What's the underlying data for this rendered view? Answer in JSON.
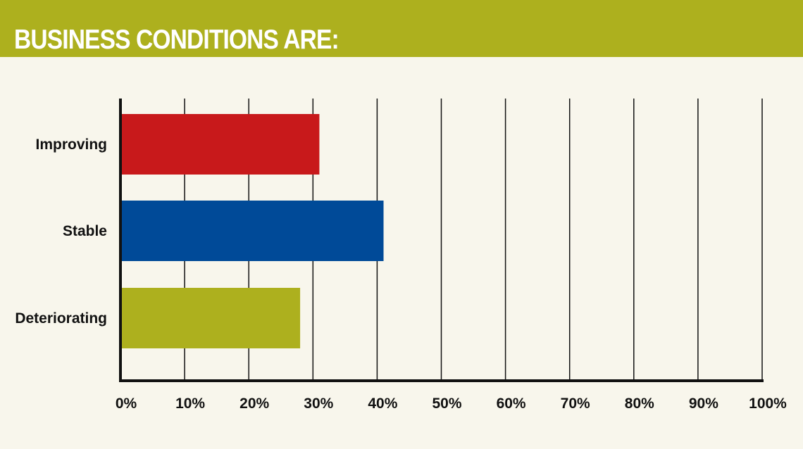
{
  "header": {
    "title": "BUSINESS CONDITIONS ARE:"
  },
  "colors": {
    "header_bg": "#adb01e",
    "background": "#f8f6ec",
    "axis": "#111111"
  },
  "chart_data": {
    "type": "bar",
    "orientation": "horizontal",
    "title": "BUSINESS CONDITIONS ARE:",
    "categories": [
      "Improving",
      "Stable",
      "Deteriorating"
    ],
    "values": [
      31,
      41,
      28
    ],
    "bar_colors": [
      "#c8191b",
      "#004a98",
      "#adb01e"
    ],
    "unit": "%",
    "xlim": [
      0,
      100
    ],
    "xticks": [
      "0%",
      "10%",
      "20%",
      "30%",
      "40%",
      "50%",
      "60%",
      "70%",
      "80%",
      "90%",
      "100%"
    ],
    "grid": "vertical lines",
    "legend": "none"
  }
}
